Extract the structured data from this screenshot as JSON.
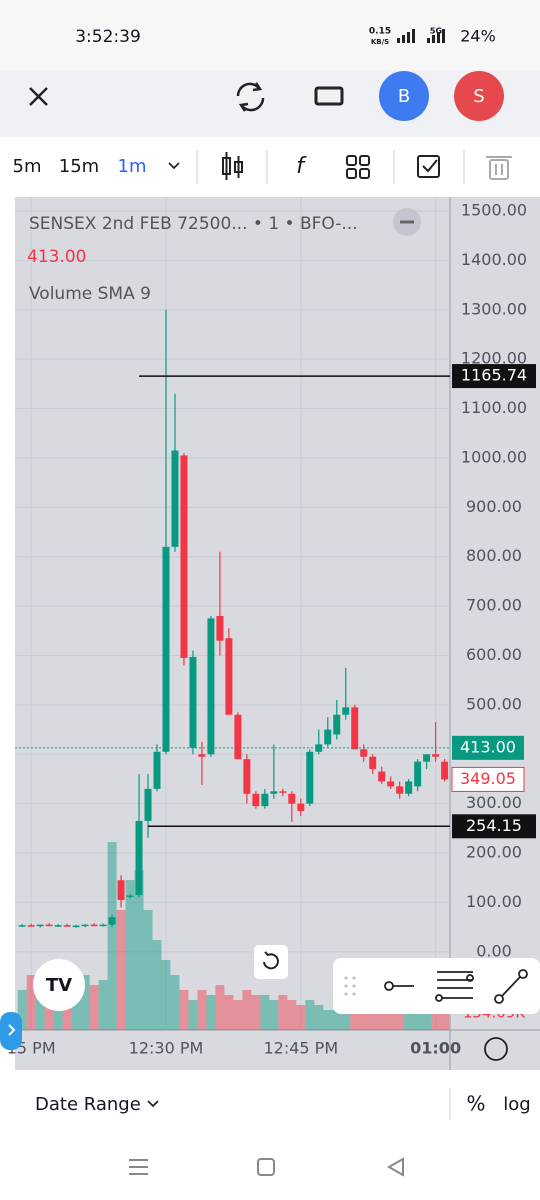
{
  "status_bar": {
    "time": "3:52:39",
    "speed": "0.15",
    "speed_unit": "KB/S",
    "network": "5G",
    "battery": "24%"
  },
  "top_bar": {
    "avatar_1": "B",
    "avatar_2": "S"
  },
  "toolbar": {
    "intervals": [
      "5m",
      "15m",
      "1m"
    ]
  },
  "chart_data": {
    "type": "candlestick",
    "title": "SENSEX 2nd FEB 72500... • 1 • BFO-...",
    "last_price_label": "413.00",
    "volume_label": "Volume SMA 9",
    "up_color": "#089981",
    "down_color": "#f23645",
    "grid": true,
    "xlim": [
      -0.8,
      47.6
    ],
    "xticks": [
      {
        "value": 1,
        "label": "15 PM"
      },
      {
        "value": 16,
        "label": "12:30 PM"
      },
      {
        "value": 31,
        "label": "12:45 PM"
      },
      {
        "value": 46,
        "label": "01:00"
      }
    ],
    "ylim": [
      -158.3,
      1528.3
    ],
    "yticks": [
      {
        "value": 0,
        "label": "0.00"
      },
      {
        "value": 100,
        "label": "100.00"
      },
      {
        "value": 200,
        "label": "200.00"
      },
      {
        "value": 300,
        "label": "300.00"
      },
      {
        "value": 400,
        "label": "400.00"
      },
      {
        "value": 500,
        "label": "500.00"
      },
      {
        "value": 600,
        "label": "600.00"
      },
      {
        "value": 700,
        "label": "700.00"
      },
      {
        "value": 800,
        "label": "800.00"
      },
      {
        "value": 900,
        "label": "900.00"
      },
      {
        "value": 1000,
        "label": "1000.00"
      },
      {
        "value": 1100,
        "label": "1100.00"
      },
      {
        "value": 1200,
        "label": "1200.00"
      },
      {
        "value": 1300,
        "label": "1300.00"
      },
      {
        "value": 1400,
        "label": "1400.00"
      },
      {
        "value": 1500,
        "label": "1500.00"
      }
    ],
    "open": [
      53,
      54,
      52,
      55,
      53,
      54,
      52,
      53,
      55,
      54,
      55,
      145,
      112,
      115,
      265,
      330,
      405,
      820,
      1005,
      413,
      400,
      400,
      680,
      635,
      480,
      390,
      320,
      295,
      320,
      325,
      320,
      300,
      300,
      405,
      420,
      440,
      480,
      495,
      410,
      395,
      365,
      345,
      335,
      320,
      335,
      385,
      400,
      385
    ],
    "high": [
      56,
      57,
      55,
      58,
      56,
      57,
      55,
      56,
      58,
      57,
      75,
      155,
      118,
      360,
      360,
      420,
      1300,
      1130,
      1010,
      610,
      425,
      680,
      810,
      655,
      485,
      400,
      325,
      330,
      420,
      330,
      325,
      310,
      410,
      450,
      475,
      510,
      575,
      500,
      420,
      400,
      375,
      355,
      345,
      350,
      390,
      400,
      465,
      390
    ],
    "low": [
      50,
      51,
      49,
      52,
      50,
      51,
      49,
      50,
      52,
      51,
      50,
      90,
      108,
      110,
      231,
      325,
      400,
      810,
      580,
      400,
      338,
      395,
      600,
      480,
      390,
      300,
      290,
      290,
      310,
      315,
      263,
      275,
      295,
      400,
      415,
      430,
      470,
      410,
      385,
      360,
      340,
      330,
      310,
      315,
      325,
      370,
      385,
      345
    ],
    "close": [
      54,
      52,
      55,
      53,
      54,
      52,
      53,
      55,
      54,
      55,
      70,
      105,
      114,
      265,
      330,
      405,
      820,
      1015,
      595,
      597,
      395,
      675,
      630,
      480,
      390,
      320,
      295,
      320,
      325,
      322,
      300,
      285,
      405,
      420,
      450,
      480,
      495,
      410,
      395,
      370,
      345,
      335,
      320,
      345,
      385,
      400,
      395,
      349
    ],
    "volume": [
      360,
      495,
      450,
      405,
      540,
      360,
      450,
      495,
      405,
      450,
      1692,
      1080,
      1350,
      1440,
      1080,
      810,
      630,
      495,
      360,
      270,
      360,
      315,
      405,
      315,
      270,
      360,
      315,
      315,
      270,
      315,
      270,
      225,
      270,
      225,
      180,
      180,
      225,
      180,
      198,
      180,
      162,
      162,
      180,
      198,
      180,
      162,
      153,
      154.09
    ],
    "volume_lim": [
      0,
      7500
    ],
    "volume_last_label": "154.09K",
    "price_lines": [
      1165.74,
      254.15
    ],
    "current_price": {
      "value": 413,
      "label": "413.00"
    },
    "bid_price": 349.05
  },
  "bottom_bar": {
    "date_range": "Date Range",
    "percent": "%",
    "log": "log"
  }
}
